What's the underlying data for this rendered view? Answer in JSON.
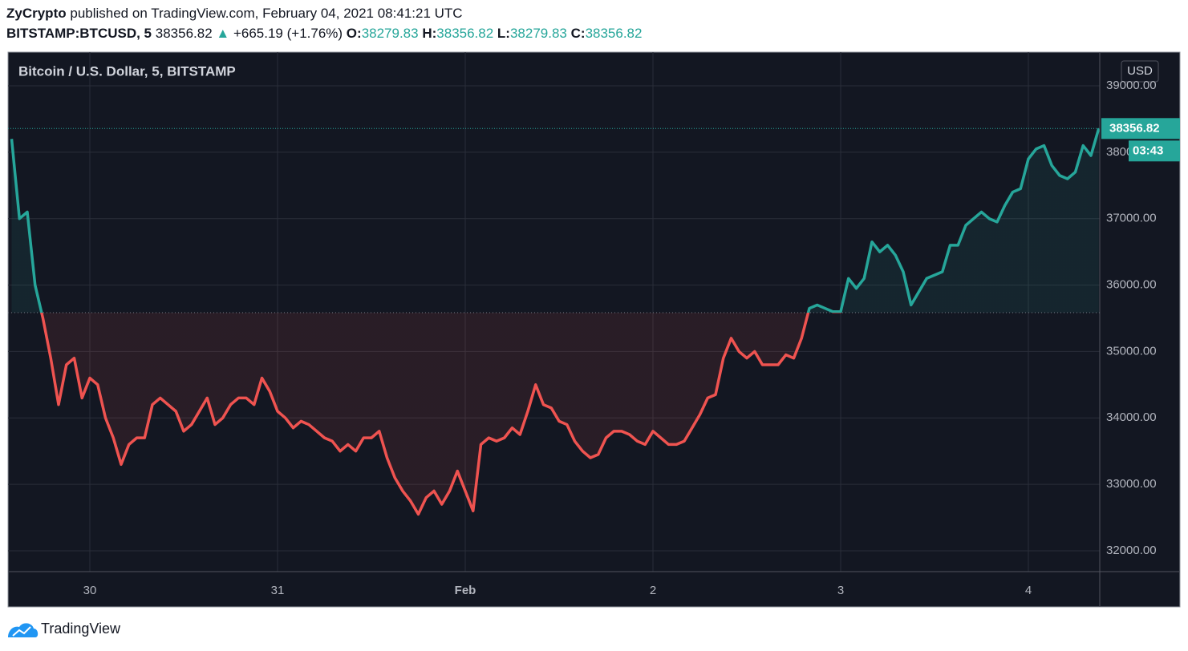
{
  "header": {
    "author": "ZyCrypto",
    "published": "published on TradingView.com, February 04, 2021 08:41:21 UTC",
    "symbol": "BITSTAMP:BTCUSD, 5",
    "price": "38356.82",
    "arrow": "▲",
    "change": "+665.19 (+1.76%)",
    "open_label": "O:",
    "open": "38279.83",
    "high_label": "H:",
    "high": "38356.82",
    "low_label": "L:",
    "low": "38279.83",
    "close_label": "C:",
    "close": "38356.82"
  },
  "footer": {
    "brand": "TradingView"
  },
  "chart_data": {
    "type": "line",
    "legend_title": "Bitcoin / U.S. Dollar, 5, BITSTAMP",
    "currency": "USD",
    "categories": [
      null,
      null,
      null,
      null,
      null,
      null,
      null,
      null,
      null,
      null,
      "30",
      null,
      null,
      null,
      null,
      null,
      null,
      null,
      null,
      null,
      null,
      null,
      null,
      null,
      null,
      null,
      null,
      null,
      null,
      null,
      null,
      null,
      null,
      null,
      "31",
      null,
      null,
      null,
      null,
      null,
      null,
      null,
      null,
      null,
      null,
      null,
      null,
      null,
      null,
      null,
      null,
      null,
      null,
      null,
      null,
      null,
      null,
      null,
      "Feb",
      null,
      null,
      null,
      null,
      null,
      null,
      null,
      null,
      null,
      null,
      null,
      null,
      null,
      null,
      null,
      null,
      null,
      null,
      null,
      null,
      null,
      null,
      null,
      "2",
      null,
      null,
      null,
      null,
      null,
      null,
      null,
      null,
      null,
      null,
      null,
      null,
      null,
      null,
      null,
      null,
      null,
      null,
      null,
      null,
      null,
      null,
      null,
      "3",
      null,
      null,
      null,
      null,
      null,
      null,
      null,
      null,
      null,
      null,
      null,
      null,
      null,
      null,
      null,
      null,
      null,
      null,
      null,
      null,
      null,
      null,
      null,
      "4",
      null,
      null,
      null,
      null,
      null,
      null,
      null,
      null,
      null
    ],
    "series": [
      {
        "name": "BTCUSD",
        "up_color": "#26a69a",
        "down_color": "#ef5350",
        "values": [
          38200,
          37000,
          37100,
          36000,
          35500,
          34900,
          34200,
          34800,
          34900,
          34300,
          34600,
          34500,
          34000,
          33700,
          33300,
          33600,
          33700,
          33700,
          34200,
          34300,
          34200,
          34100,
          33800,
          33900,
          34100,
          34300,
          33900,
          34000,
          34200,
          34300,
          34300,
          34200,
          34600,
          34400,
          34100,
          34000,
          33850,
          33950,
          33900,
          33800,
          33700,
          33650,
          33500,
          33600,
          33500,
          33700,
          33700,
          33800,
          33400,
          33100,
          32900,
          32750,
          32550,
          32800,
          32900,
          32700,
          32900,
          33200,
          32900,
          32600,
          33600,
          33700,
          33650,
          33700,
          33850,
          33750,
          34100,
          34500,
          34200,
          34150,
          33950,
          33900,
          33650,
          33500,
          33400,
          33450,
          33700,
          33800,
          33800,
          33750,
          33650,
          33600,
          33800,
          33700,
          33600,
          33600,
          33650,
          33850,
          34050,
          34300,
          34350,
          34900,
          35200,
          35000,
          34900,
          35000,
          34800,
          34800,
          34800,
          34950,
          34900,
          35200,
          35650,
          35700,
          35650,
          35600,
          35600,
          36100,
          35950,
          36100,
          36650,
          36500,
          36600,
          36450,
          36200,
          35700,
          35900,
          36100,
          36150,
          36200,
          36600,
          36600,
          36900,
          37000,
          37100,
          37000,
          36950,
          37200,
          37400,
          37450,
          37900,
          38050,
          38100,
          37800,
          37650,
          37600,
          37700,
          38100,
          37950,
          38356.82
        ]
      }
    ],
    "baseline": 35584,
    "last_price": 38356.82,
    "countdown": "03:43",
    "ylim": [
      31686,
      39507
    ],
    "yticks": [
      {
        "value": 32000,
        "label": "32000.00"
      },
      {
        "value": 33000,
        "label": "33000.00"
      },
      {
        "value": 34000,
        "label": "34000.00"
      },
      {
        "value": 35000,
        "label": "35000.00"
      },
      {
        "value": 36000,
        "label": "36000.00"
      },
      {
        "value": 37000,
        "label": "37000.00"
      },
      {
        "value": 38000,
        "label": "38000.00"
      },
      {
        "value": 39000,
        "label": "39000.00"
      }
    ],
    "grid": true,
    "background": "#131722",
    "grid_color": "#2a2e39"
  }
}
